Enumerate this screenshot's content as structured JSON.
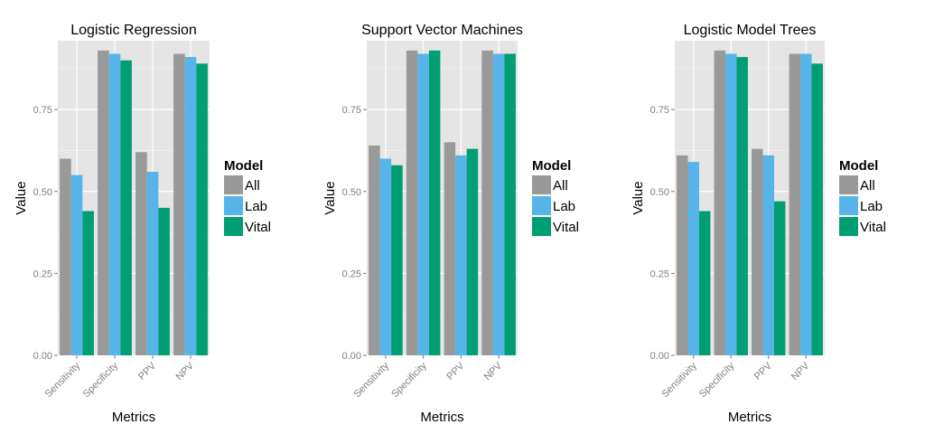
{
  "chart_data": [
    {
      "type": "bar",
      "title": "Logistic Regression",
      "xlabel": "Metrics",
      "ylabel": "Value",
      "categories": [
        "Sensitivity",
        "Specificity",
        "PPV",
        "NPV"
      ],
      "ylim": [
        0,
        0.96
      ],
      "yticks": [
        "0.00",
        "0.25",
        "0.50",
        "0.75"
      ],
      "series": [
        {
          "name": "All",
          "values": [
            0.6,
            0.93,
            0.62,
            0.92
          ]
        },
        {
          "name": "Lab",
          "values": [
            0.55,
            0.92,
            0.56,
            0.91
          ]
        },
        {
          "name": "Vital",
          "values": [
            0.44,
            0.9,
            0.45,
            0.89
          ]
        }
      ],
      "legend": {
        "title": "Model",
        "position": "right"
      },
      "grid": true
    },
    {
      "type": "bar",
      "title": "Support Vector Machines",
      "xlabel": "Metrics",
      "ylabel": "Value",
      "categories": [
        "Sensitivity",
        "Specificity",
        "PPV",
        "NPV"
      ],
      "ylim": [
        0,
        0.96
      ],
      "yticks": [
        "0.00",
        "0.25",
        "0.50",
        "0.75"
      ],
      "series": [
        {
          "name": "All",
          "values": [
            0.64,
            0.93,
            0.65,
            0.93
          ]
        },
        {
          "name": "Lab",
          "values": [
            0.6,
            0.92,
            0.61,
            0.92
          ]
        },
        {
          "name": "Vital",
          "values": [
            0.58,
            0.93,
            0.63,
            0.92
          ]
        }
      ],
      "legend": {
        "title": "Model",
        "position": "right"
      },
      "grid": true
    },
    {
      "type": "bar",
      "title": "Logistic Model Trees",
      "xlabel": "Metrics",
      "ylabel": "Value",
      "categories": [
        "Sensitivity",
        "Specificity",
        "PPV",
        "NPV"
      ],
      "ylim": [
        0,
        0.96
      ],
      "yticks": [
        "0.00",
        "0.25",
        "0.50",
        "0.75"
      ],
      "series": [
        {
          "name": "All",
          "values": [
            0.61,
            0.93,
            0.63,
            0.92
          ]
        },
        {
          "name": "Lab",
          "values": [
            0.59,
            0.92,
            0.61,
            0.92
          ]
        },
        {
          "name": "Vital",
          "values": [
            0.44,
            0.91,
            0.47,
            0.89
          ]
        }
      ],
      "legend": {
        "title": "Model",
        "position": "right"
      },
      "grid": true
    }
  ],
  "colors": {
    "All": "#999999",
    "Lab": "#56b4e9",
    "Vital": "#009e73",
    "panel_background": "#e5e5e5",
    "grid_major": "#ffffff",
    "grid_minor": "#f2f2f2",
    "tick_text": "#7f7f7f"
  }
}
